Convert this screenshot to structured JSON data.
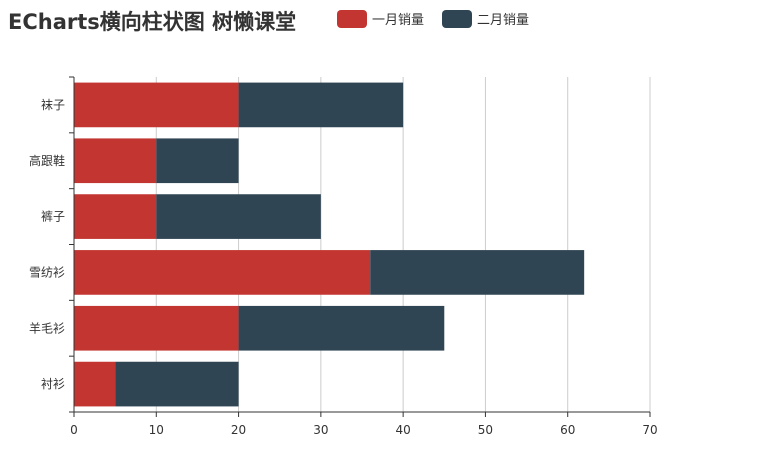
{
  "chart_data": {
    "type": "bar",
    "orientation": "horizontal",
    "stacked": true,
    "title": "ECharts横向柱状图 树懒课堂",
    "categories": [
      "衬衫",
      "羊毛衫",
      "雪纺衫",
      "裤子",
      "高跟鞋",
      "袜子"
    ],
    "series": [
      {
        "name": "一月销量",
        "values": [
          5,
          20,
          36,
          10,
          10,
          20
        ],
        "color": "#c23531"
      },
      {
        "name": "二月销量",
        "values": [
          15,
          25,
          26,
          20,
          10,
          20
        ],
        "color": "#2f4554"
      }
    ],
    "x_ticks": [
      0,
      10,
      20,
      30,
      40,
      50,
      60,
      70
    ],
    "xlim": [
      0,
      70
    ],
    "xlabel": "",
    "ylabel": "",
    "grid": "vertical lines",
    "legend_position": "top"
  }
}
